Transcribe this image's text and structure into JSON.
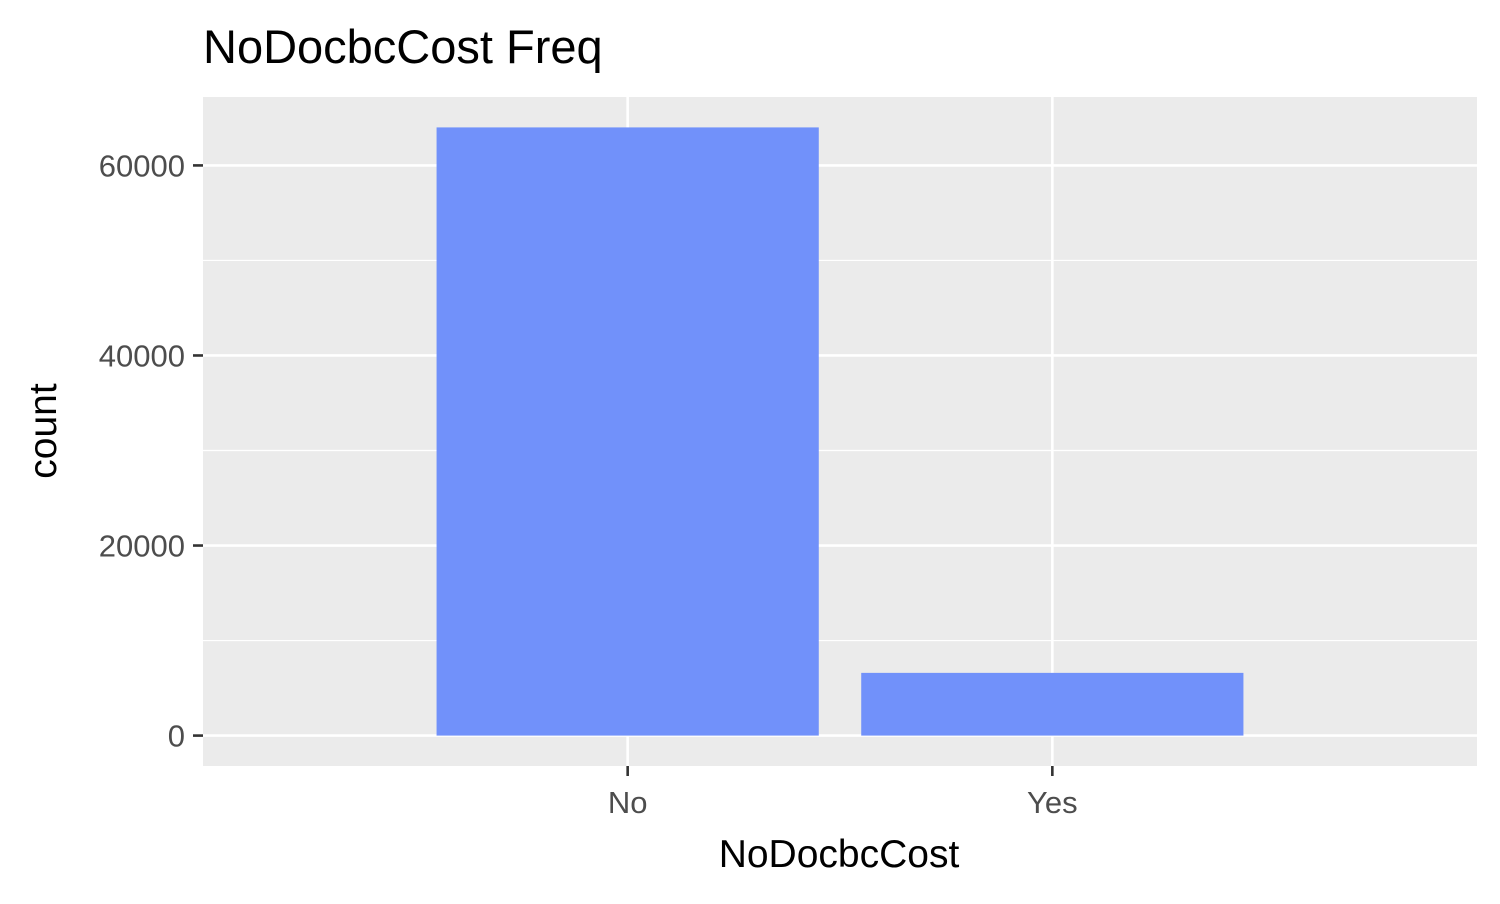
{
  "chart_data": {
    "type": "bar",
    "title": "NoDocbcCost Freq",
    "xlabel": "NoDocbcCost",
    "ylabel": "count",
    "categories": [
      "No",
      "Yes"
    ],
    "values": [
      64000,
      6600
    ],
    "ylim": [
      -3200,
      67200
    ],
    "yticks": [
      0,
      20000,
      40000,
      60000
    ],
    "ytick_labels": [
      "0",
      "20000",
      "40000",
      "60000"
    ],
    "grid": true,
    "legend": "none",
    "bar_color": "#6b8cfa",
    "panel_background": "#ebebeb",
    "grid_color": "#ffffff"
  }
}
